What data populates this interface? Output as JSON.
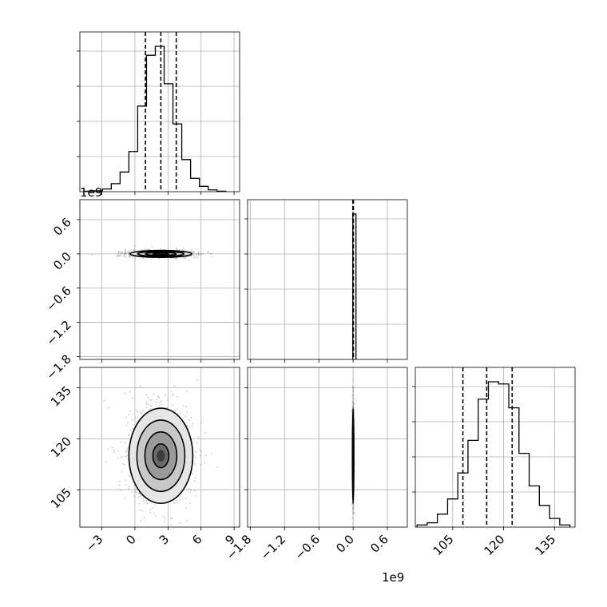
{
  "chart_data": {
    "type": "corner",
    "grid": true,
    "parameters": [
      {
        "index": 0,
        "range": [
          -5,
          9.5
        ],
        "ticks": [
          -3,
          0,
          3,
          6,
          9
        ],
        "tick_labels": [
          "−3",
          "0",
          "3",
          "6",
          "9"
        ]
      },
      {
        "index": 1,
        "range": [
          -1850000000.0,
          950000000.0
        ],
        "ticks": [
          -1800000000.0,
          -1200000000.0,
          -600000000.0,
          0.0,
          600000000.0
        ],
        "tick_labels": [
          "−1.8",
          "−1.2",
          "−0.6",
          "0.0",
          "0.6"
        ],
        "offset_text": "1e9"
      },
      {
        "index": 2,
        "range": [
          94,
          141
        ],
        "ticks": [
          105,
          120,
          135
        ],
        "tick_labels": [
          "105",
          "120",
          "135"
        ]
      }
    ],
    "marginals": [
      {
        "parameter": 0,
        "bin_edges": [
          -4.55,
          -3.75,
          -2.95,
          -2.15,
          -1.35,
          -0.55,
          0.25,
          1.05,
          1.85,
          2.65,
          3.45,
          4.25,
          5.05,
          5.85,
          6.65,
          7.45,
          8.25
        ],
        "counts": [
          0.5,
          1,
          3,
          9,
          22,
          45,
          96,
          153,
          163,
          121,
          76,
          36,
          15,
          6,
          2,
          0.5
        ],
        "quantiles": [
          0.95,
          2.35,
          3.75
        ]
      },
      {
        "parameter": 1,
        "bin_edges": [
          -5000000.0,
          50000000.0
        ],
        "counts": [
          100
        ],
        "quantiles": [
          -5000000.0,
          0.0,
          5000000.0
        ]
      },
      {
        "parameter": 2,
        "bin_edges": [
          94.5,
          97.5,
          100.5,
          103.5,
          106.5,
          109.5,
          112.5,
          115.5,
          118.5,
          121.5,
          124.5,
          127.5,
          130.5,
          133.5,
          136.5,
          139.5
        ],
        "counts": [
          1,
          2,
          6,
          13,
          25,
          40,
          59,
          67,
          66,
          55,
          34,
          19,
          10,
          4,
          1
        ],
        "quantiles": [
          108,
          115,
          122.5
        ]
      }
    ],
    "pairs": [
      {
        "x_parameter": 0,
        "y_parameter": 1,
        "center": [
          2.35,
          0.0
        ],
        "spread": [
          1.4,
          30000000.0
        ],
        "type": "contour_scatter"
      },
      {
        "x_parameter": 0,
        "y_parameter": 2,
        "center": [
          2.35,
          115
        ],
        "spread": [
          1.45,
          7.0
        ],
        "type": "contour_scatter"
      },
      {
        "x_parameter": 1,
        "y_parameter": 2,
        "center": [
          0.0,
          115
        ],
        "spread": [
          6000000.0,
          7.0
        ],
        "type": "contour_scatter"
      }
    ]
  }
}
